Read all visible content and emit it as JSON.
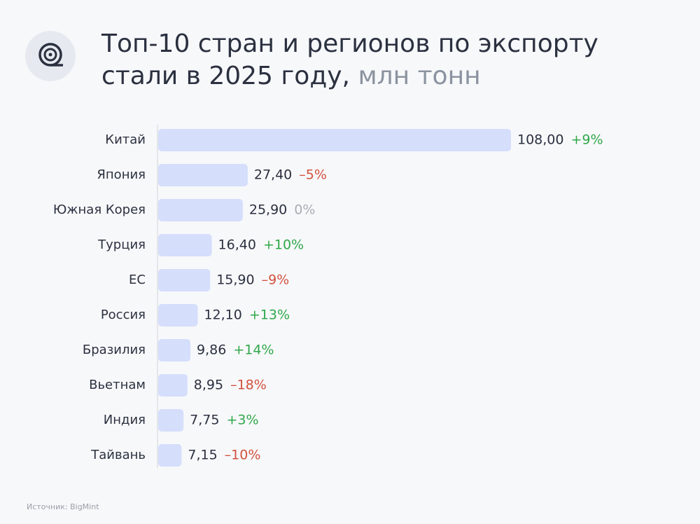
{
  "chart_data": {
    "type": "bar",
    "orientation": "horizontal",
    "title_lines": [
      "Топ-10 стран и регионов по экспорту",
      "стали в 2025 году,"
    ],
    "unit": "млн тонн",
    "categories": [
      "Китай",
      "Япония",
      "Южная Корея",
      "Турция",
      "ЕС",
      "Россия",
      "Бразилия",
      "Вьетнам",
      "Индия",
      "Тайвань"
    ],
    "values": [
      108.0,
      27.4,
      25.9,
      16.4,
      15.9,
      12.1,
      9.86,
      8.95,
      7.75,
      7.15
    ],
    "value_labels": [
      "108,00",
      "27,40",
      "25,90",
      "16,40",
      "15,90",
      "12,10",
      "9,86",
      "8,95",
      "7,75",
      "7,15"
    ],
    "changes": [
      9,
      -5,
      0,
      10,
      -9,
      13,
      14,
      -18,
      3,
      -10
    ],
    "change_labels": [
      "+9%",
      "–5%",
      "0%",
      "+10%",
      "–9%",
      "+13%",
      "+14%",
      "–18%",
      "+3%",
      "–10%"
    ],
    "color": "#d5defb",
    "positive_color": "#2fa84a",
    "negative_color": "#d2513d",
    "neutral_color": "#a9adb3",
    "source": "Источник: BigMint"
  }
}
